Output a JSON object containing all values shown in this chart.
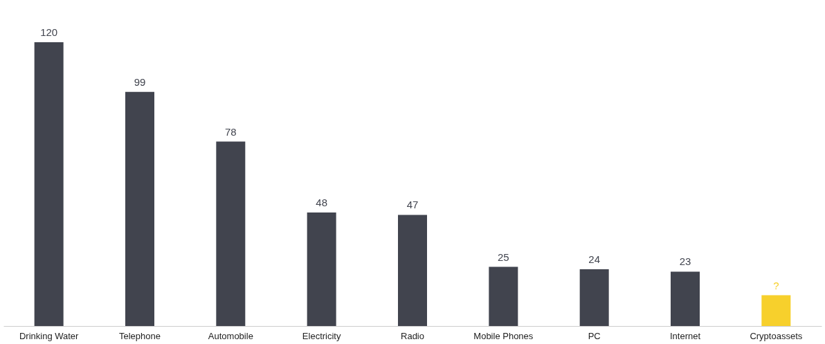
{
  "chart_data": {
    "type": "bar",
    "categories": [
      "Drinking Water",
      "Telephone",
      "Automobile",
      "Electricity",
      "Radio",
      "Mobile Phones",
      "PC",
      "Internet",
      "Cryptoassets"
    ],
    "values": [
      120,
      99,
      78,
      48,
      47,
      25,
      24,
      23,
      13
    ],
    "colors": [
      "#41444e",
      "#41444e",
      "#41444e",
      "#41444e",
      "#41444e",
      "#41444e",
      "#41444e",
      "#41444e",
      "#f7d02c"
    ],
    "value_labels": [
      "120",
      "99",
      "78",
      "48",
      "47",
      "25",
      "24",
      "23",
      "?"
    ],
    "grid": false
  }
}
